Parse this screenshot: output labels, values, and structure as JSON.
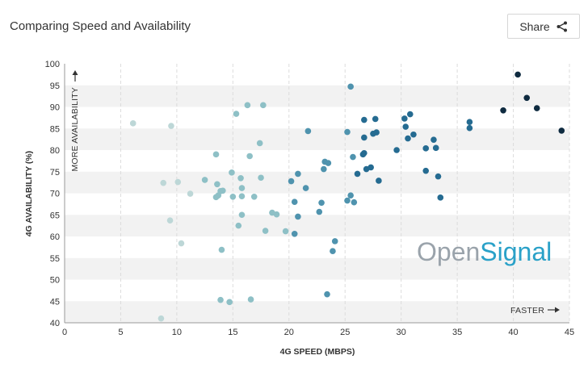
{
  "header": {
    "title": "Comparing Speed and Availability",
    "share_label": "Share"
  },
  "watermark": {
    "part1": "Open",
    "part2": "Signal"
  },
  "chart_data": {
    "type": "scatter",
    "title": "Comparing Speed and Availability",
    "xlabel": "4G SPEED (MBPS)",
    "ylabel": "4G AVAILABILITY (%)",
    "xlim": [
      0,
      45
    ],
    "ylim": [
      40,
      100
    ],
    "xticks": [
      0,
      5,
      10,
      15,
      20,
      25,
      30,
      35,
      40,
      45
    ],
    "yticks": [
      40,
      45,
      50,
      55,
      60,
      65,
      70,
      75,
      80,
      85,
      90,
      95,
      100
    ],
    "y_annotation": "MORE AVAILABILITY",
    "x_annotation": "FASTER",
    "grid": "alternating horizontal bands, vertical dashed lines",
    "color_scale": [
      "#bdd7d7",
      "#8ec0c6",
      "#4f93ae",
      "#256b91",
      "#0f2b40"
    ],
    "points": [
      {
        "x": 6.1,
        "y": 86.2
      },
      {
        "x": 9.5,
        "y": 85.6
      },
      {
        "x": 8.8,
        "y": 72.4
      },
      {
        "x": 10.1,
        "y": 72.6
      },
      {
        "x": 9.4,
        "y": 63.7
      },
      {
        "x": 10.4,
        "y": 58.4
      },
      {
        "x": 11.2,
        "y": 69.9
      },
      {
        "x": 12.5,
        "y": 73.1
      },
      {
        "x": 13.5,
        "y": 79.0
      },
      {
        "x": 13.6,
        "y": 72.1
      },
      {
        "x": 13.5,
        "y": 69.1
      },
      {
        "x": 13.7,
        "y": 69.5
      },
      {
        "x": 13.9,
        "y": 70.5
      },
      {
        "x": 14.1,
        "y": 70.6
      },
      {
        "x": 14.0,
        "y": 56.9
      },
      {
        "x": 14.9,
        "y": 74.8
      },
      {
        "x": 15.0,
        "y": 69.2
      },
      {
        "x": 15.3,
        "y": 88.4
      },
      {
        "x": 15.7,
        "y": 73.5
      },
      {
        "x": 15.8,
        "y": 71.2
      },
      {
        "x": 15.8,
        "y": 69.3
      },
      {
        "x": 15.5,
        "y": 62.5
      },
      {
        "x": 15.8,
        "y": 65.0
      },
      {
        "x": 16.3,
        "y": 90.4
      },
      {
        "x": 16.5,
        "y": 78.6
      },
      {
        "x": 16.9,
        "y": 69.2
      },
      {
        "x": 17.4,
        "y": 81.6
      },
      {
        "x": 17.5,
        "y": 73.6
      },
      {
        "x": 17.7,
        "y": 90.4
      },
      {
        "x": 17.9,
        "y": 61.3
      },
      {
        "x": 18.5,
        "y": 65.5
      },
      {
        "x": 18.9,
        "y": 65.1
      },
      {
        "x": 19.7,
        "y": 61.2
      },
      {
        "x": 20.2,
        "y": 72.8
      },
      {
        "x": 20.5,
        "y": 60.6
      },
      {
        "x": 20.5,
        "y": 68.0
      },
      {
        "x": 20.8,
        "y": 74.5
      },
      {
        "x": 20.8,
        "y": 64.6
      },
      {
        "x": 21.5,
        "y": 71.2
      },
      {
        "x": 21.7,
        "y": 84.4
      },
      {
        "x": 22.7,
        "y": 65.7
      },
      {
        "x": 22.9,
        "y": 67.8
      },
      {
        "x": 23.1,
        "y": 75.6
      },
      {
        "x": 23.2,
        "y": 77.3
      },
      {
        "x": 23.5,
        "y": 77.0
      },
      {
        "x": 23.9,
        "y": 56.6
      },
      {
        "x": 24.1,
        "y": 58.9
      },
      {
        "x": 25.2,
        "y": 84.2
      },
      {
        "x": 25.2,
        "y": 68.3
      },
      {
        "x": 25.5,
        "y": 69.5
      },
      {
        "x": 25.7,
        "y": 78.4
      },
      {
        "x": 25.8,
        "y": 67.9
      },
      {
        "x": 26.1,
        "y": 74.5
      },
      {
        "x": 25.5,
        "y": 94.7
      },
      {
        "x": 26.7,
        "y": 87.0
      },
      {
        "x": 26.7,
        "y": 82.9
      },
      {
        "x": 26.6,
        "y": 79.0
      },
      {
        "x": 26.7,
        "y": 79.3
      },
      {
        "x": 26.9,
        "y": 75.6
      },
      {
        "x": 27.3,
        "y": 76.0
      },
      {
        "x": 27.5,
        "y": 83.8
      },
      {
        "x": 27.7,
        "y": 87.2
      },
      {
        "x": 27.8,
        "y": 84.1
      },
      {
        "x": 28.0,
        "y": 72.9
      },
      {
        "x": 29.6,
        "y": 80.0
      },
      {
        "x": 30.3,
        "y": 87.3
      },
      {
        "x": 30.4,
        "y": 85.4
      },
      {
        "x": 30.6,
        "y": 82.7
      },
      {
        "x": 30.8,
        "y": 88.3
      },
      {
        "x": 31.1,
        "y": 83.6
      },
      {
        "x": 32.2,
        "y": 80.4
      },
      {
        "x": 32.2,
        "y": 75.2
      },
      {
        "x": 32.9,
        "y": 82.4
      },
      {
        "x": 33.1,
        "y": 80.5
      },
      {
        "x": 33.3,
        "y": 73.9
      },
      {
        "x": 33.5,
        "y": 69.0
      },
      {
        "x": 36.1,
        "y": 86.5
      },
      {
        "x": 36.1,
        "y": 85.1
      },
      {
        "x": 39.1,
        "y": 89.2
      },
      {
        "x": 40.4,
        "y": 97.5
      },
      {
        "x": 41.2,
        "y": 92.1
      },
      {
        "x": 42.1,
        "y": 89.7
      },
      {
        "x": 44.3,
        "y": 84.5
      },
      {
        "x": 8.6,
        "y": 41.0
      },
      {
        "x": 13.9,
        "y": 45.3
      },
      {
        "x": 14.7,
        "y": 44.8
      },
      {
        "x": 16.6,
        "y": 45.4
      },
      {
        "x": 23.4,
        "y": 46.6
      }
    ]
  }
}
